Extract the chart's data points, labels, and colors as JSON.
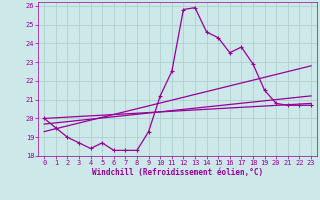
{
  "xlabel": "Windchill (Refroidissement éolien,°C)",
  "xlim": [
    -0.5,
    23.5
  ],
  "ylim": [
    18,
    26.2
  ],
  "yticks": [
    18,
    19,
    20,
    21,
    22,
    23,
    24,
    25,
    26
  ],
  "xticks": [
    0,
    1,
    2,
    3,
    4,
    5,
    6,
    7,
    8,
    9,
    10,
    11,
    12,
    13,
    14,
    15,
    16,
    17,
    18,
    19,
    20,
    21,
    22,
    23
  ],
  "bg_color": "#cde8e8",
  "grid_color": "#aacccc",
  "line_color": "#990099",
  "line1_x": [
    0,
    1,
    2,
    3,
    4,
    5,
    6,
    7,
    8,
    9,
    10,
    11,
    12,
    13,
    14,
    15,
    16,
    17,
    18,
    19,
    20,
    21,
    22,
    23
  ],
  "line1_y": [
    20.0,
    19.5,
    19.0,
    18.7,
    18.4,
    18.7,
    18.3,
    18.3,
    18.3,
    19.3,
    21.2,
    22.5,
    25.8,
    25.9,
    24.6,
    24.3,
    23.5,
    23.8,
    22.9,
    21.5,
    20.8,
    20.7,
    20.7,
    20.7
  ],
  "line2_x": [
    0,
    23
  ],
  "line2_y": [
    19.3,
    22.8
  ],
  "line3_x": [
    0,
    23
  ],
  "line3_y": [
    19.7,
    21.2
  ],
  "line4_x": [
    0,
    23
  ],
  "line4_y": [
    20.0,
    20.8
  ],
  "marker_style": "+",
  "linewidth": 0.9,
  "markersize": 3.5,
  "tick_fontsize": 5,
  "xlabel_fontsize": 5.5
}
